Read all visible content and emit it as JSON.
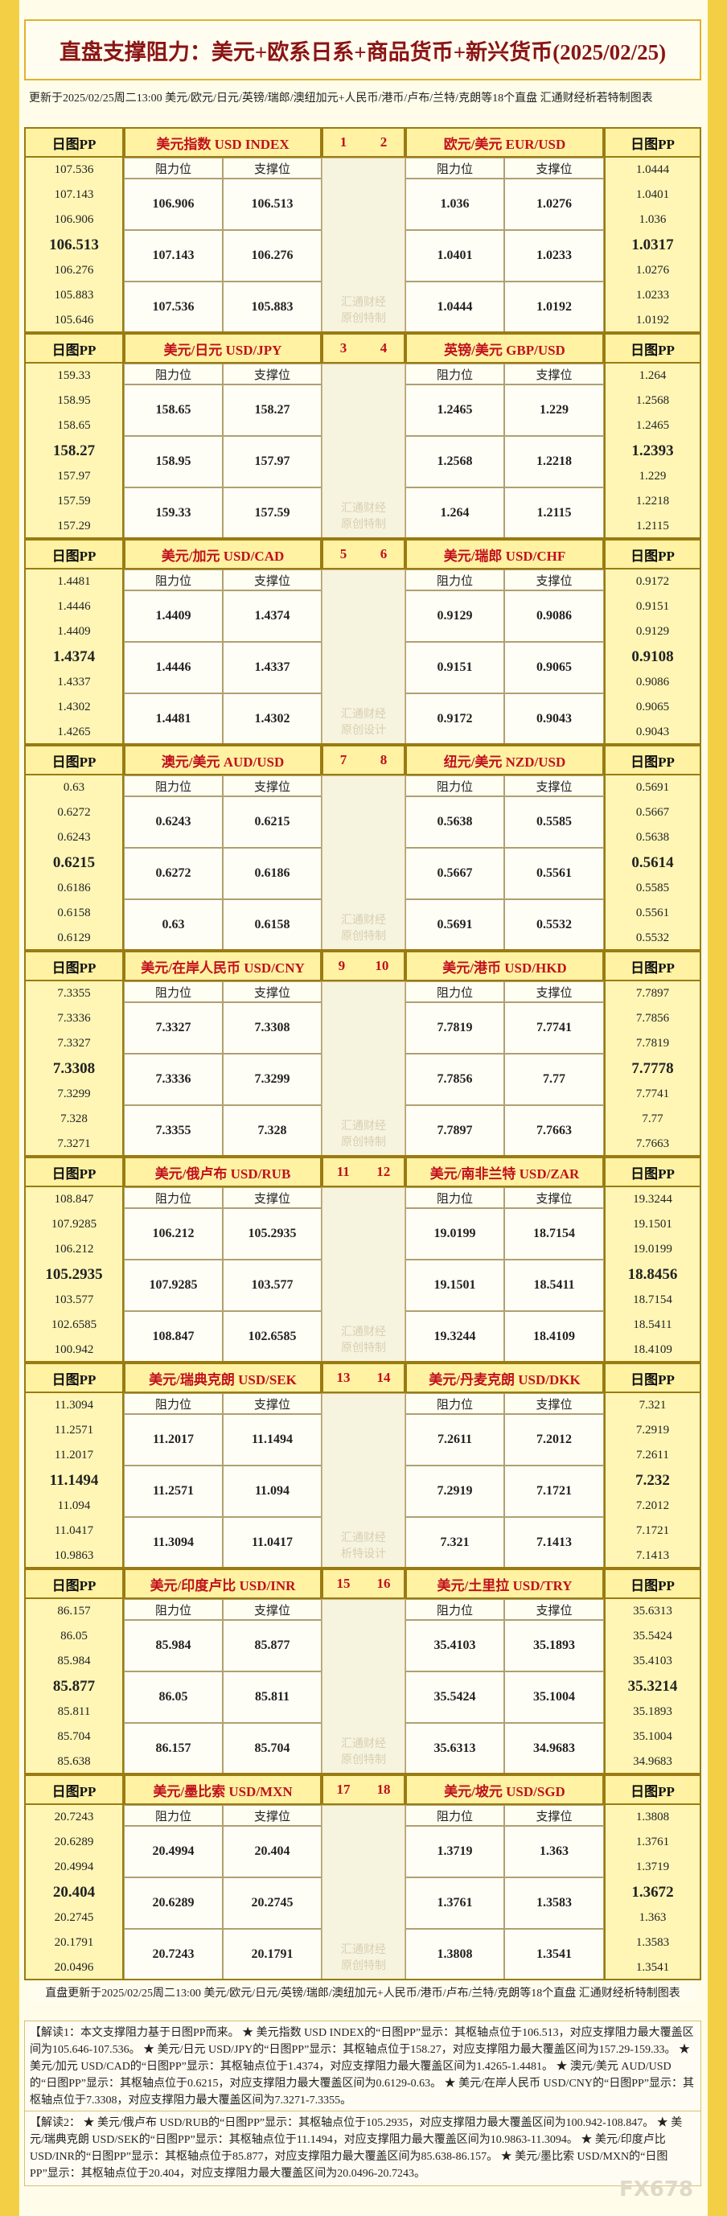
{
  "header": {
    "title": "直盘支撑阻力：美元+欧系日系+商品货币+新兴货币(2025/02/25)",
    "update": "更新于2025/02/25周二13:00 美元/欧元/日元/英镑/瑞郎/澳纽加元+人民币/港币/卢布/兰特/克朗等18个直盘 汇通财经析若特制图表"
  },
  "labels": {
    "pp": "日图PP",
    "res": "阻力位",
    "sup": "支撑位"
  },
  "blocks": [
    {
      "numbers": [
        "1",
        "2"
      ],
      "watermark": [
        "汇通财经",
        "原创特制"
      ],
      "pairs": [
        {
          "name": "美元指数 USD INDEX",
          "pp": [
            "107.536",
            "107.143",
            "106.906",
            "106.513",
            "106.276",
            "105.883",
            "105.646"
          ],
          "rows": [
            [
              "106.906",
              "106.513"
            ],
            [
              "107.143",
              "106.276"
            ],
            [
              "107.536",
              "105.883"
            ]
          ]
        },
        {
          "name": "欧元/美元 EUR/USD",
          "pp": [
            "1.0444",
            "1.0401",
            "1.036",
            "1.0317",
            "1.0276",
            "1.0233",
            "1.0192"
          ],
          "rows": [
            [
              "1.036",
              "1.0276"
            ],
            [
              "1.0401",
              "1.0233"
            ],
            [
              "1.0444",
              "1.0192"
            ]
          ]
        }
      ]
    },
    {
      "numbers": [
        "3",
        "4"
      ],
      "watermark": [
        "汇通财经",
        "原创特制"
      ],
      "pairs": [
        {
          "name": "美元/日元 USD/JPY",
          "pp": [
            "159.33",
            "158.95",
            "158.65",
            "158.27",
            "157.97",
            "157.59",
            "157.29"
          ],
          "rows": [
            [
              "158.65",
              "158.27"
            ],
            [
              "158.95",
              "157.97"
            ],
            [
              "159.33",
              "157.59"
            ]
          ]
        },
        {
          "name": "英镑/美元 GBP/USD",
          "pp": [
            "1.264",
            "1.2568",
            "1.2465",
            "1.2393",
            "1.229",
            "1.2218",
            "1.2115"
          ],
          "rows": [
            [
              "1.2465",
              "1.229"
            ],
            [
              "1.2568",
              "1.2218"
            ],
            [
              "1.264",
              "1.2115"
            ]
          ]
        }
      ]
    },
    {
      "numbers": [
        "5",
        "6"
      ],
      "watermark": [
        "汇通财经",
        "原创设计"
      ],
      "pairs": [
        {
          "name": "美元/加元 USD/CAD",
          "pp": [
            "1.4481",
            "1.4446",
            "1.4409",
            "1.4374",
            "1.4337",
            "1.4302",
            "1.4265"
          ],
          "rows": [
            [
              "1.4409",
              "1.4374"
            ],
            [
              "1.4446",
              "1.4337"
            ],
            [
              "1.4481",
              "1.4302"
            ]
          ]
        },
        {
          "name": "美元/瑞郎 USD/CHF",
          "pp": [
            "0.9172",
            "0.9151",
            "0.9129",
            "0.9108",
            "0.9086",
            "0.9065",
            "0.9043"
          ],
          "rows": [
            [
              "0.9129",
              "0.9086"
            ],
            [
              "0.9151",
              "0.9065"
            ],
            [
              "0.9172",
              "0.9043"
            ]
          ]
        }
      ]
    },
    {
      "numbers": [
        "7",
        "8"
      ],
      "watermark": [
        "汇通财经",
        "原创特制"
      ],
      "pairs": [
        {
          "name": "澳元/美元 AUD/USD",
          "pp": [
            "0.63",
            "0.6272",
            "0.6243",
            "0.6215",
            "0.6186",
            "0.6158",
            "0.6129"
          ],
          "rows": [
            [
              "0.6243",
              "0.6215"
            ],
            [
              "0.6272",
              "0.6186"
            ],
            [
              "0.63",
              "0.6158"
            ]
          ]
        },
        {
          "name": "纽元/美元 NZD/USD",
          "pp": [
            "0.5691",
            "0.5667",
            "0.5638",
            "0.5614",
            "0.5585",
            "0.5561",
            "0.5532"
          ],
          "rows": [
            [
              "0.5638",
              "0.5585"
            ],
            [
              "0.5667",
              "0.5561"
            ],
            [
              "0.5691",
              "0.5532"
            ]
          ]
        }
      ]
    },
    {
      "numbers": [
        "9",
        "10"
      ],
      "watermark": [
        "汇通财经",
        "原创特制"
      ],
      "pairs": [
        {
          "name": "美元/在岸人民币 USD/CNY",
          "pp": [
            "7.3355",
            "7.3336",
            "7.3327",
            "7.3308",
            "7.3299",
            "7.328",
            "7.3271"
          ],
          "rows": [
            [
              "7.3327",
              "7.3308"
            ],
            [
              "7.3336",
              "7.3299"
            ],
            [
              "7.3355",
              "7.328"
            ]
          ]
        },
        {
          "name": "美元/港币 USD/HKD",
          "pp": [
            "7.7897",
            "7.7856",
            "7.7819",
            "7.7778",
            "7.7741",
            "7.77",
            "7.7663"
          ],
          "rows": [
            [
              "7.7819",
              "7.7741"
            ],
            [
              "7.7856",
              "7.77"
            ],
            [
              "7.7897",
              "7.7663"
            ]
          ]
        }
      ]
    },
    {
      "numbers": [
        "11",
        "12"
      ],
      "watermark": [
        "汇通财经",
        "原创特制"
      ],
      "pairs": [
        {
          "name": "美元/俄卢布 USD/RUB",
          "pp": [
            "108.847",
            "107.9285",
            "106.212",
            "105.2935",
            "103.577",
            "102.6585",
            "100.942"
          ],
          "rows": [
            [
              "106.212",
              "105.2935"
            ],
            [
              "107.9285",
              "103.577"
            ],
            [
              "108.847",
              "102.6585"
            ]
          ]
        },
        {
          "name": "美元/南非兰特 USD/ZAR",
          "pp": [
            "19.3244",
            "19.1501",
            "19.0199",
            "18.8456",
            "18.7154",
            "18.5411",
            "18.4109"
          ],
          "rows": [
            [
              "19.0199",
              "18.7154"
            ],
            [
              "19.1501",
              "18.5411"
            ],
            [
              "19.3244",
              "18.4109"
            ]
          ]
        }
      ]
    },
    {
      "numbers": [
        "13",
        "14"
      ],
      "watermark": [
        "汇通财经",
        "析特设计"
      ],
      "pairs": [
        {
          "name": "美元/瑞典克朗 USD/SEK",
          "pp": [
            "11.3094",
            "11.2571",
            "11.2017",
            "11.1494",
            "11.094",
            "11.0417",
            "10.9863"
          ],
          "rows": [
            [
              "11.2017",
              "11.1494"
            ],
            [
              "11.2571",
              "11.094"
            ],
            [
              "11.3094",
              "11.0417"
            ]
          ]
        },
        {
          "name": "美元/丹麦克朗 USD/DKK",
          "pp": [
            "7.321",
            "7.2919",
            "7.2611",
            "7.232",
            "7.2012",
            "7.1721",
            "7.1413"
          ],
          "rows": [
            [
              "7.2611",
              "7.2012"
            ],
            [
              "7.2919",
              "7.1721"
            ],
            [
              "7.321",
              "7.1413"
            ]
          ]
        }
      ]
    },
    {
      "numbers": [
        "15",
        "16"
      ],
      "watermark": [
        "汇通财经",
        "原创特制"
      ],
      "pairs": [
        {
          "name": "美元/印度卢比 USD/INR",
          "pp": [
            "86.157",
            "86.05",
            "85.984",
            "85.877",
            "85.811",
            "85.704",
            "85.638"
          ],
          "rows": [
            [
              "85.984",
              "85.877"
            ],
            [
              "86.05",
              "85.811"
            ],
            [
              "86.157",
              "85.704"
            ]
          ]
        },
        {
          "name": "美元/土里拉 USD/TRY",
          "pp": [
            "35.6313",
            "35.5424",
            "35.4103",
            "35.3214",
            "35.1893",
            "35.1004",
            "34.9683"
          ],
          "rows": [
            [
              "35.4103",
              "35.1893"
            ],
            [
              "35.5424",
              "35.1004"
            ],
            [
              "35.6313",
              "34.9683"
            ]
          ]
        }
      ]
    },
    {
      "numbers": [
        "17",
        "18"
      ],
      "watermark": [
        "汇通财经",
        "原创特制"
      ],
      "pairs": [
        {
          "name": "美元/墨比索 USD/MXN",
          "pp": [
            "20.7243",
            "20.6289",
            "20.4994",
            "20.404",
            "20.2745",
            "20.1791",
            "20.0496"
          ],
          "rows": [
            [
              "20.4994",
              "20.404"
            ],
            [
              "20.6289",
              "20.2745"
            ],
            [
              "20.7243",
              "20.1791"
            ]
          ]
        },
        {
          "name": "美元/坡元 USD/SGD",
          "pp": [
            "1.3808",
            "1.3761",
            "1.3719",
            "1.3672",
            "1.363",
            "1.3583",
            "1.3541"
          ],
          "rows": [
            [
              "1.3719",
              "1.363"
            ],
            [
              "1.3761",
              "1.3583"
            ],
            [
              "1.3808",
              "1.3541"
            ]
          ]
        }
      ]
    }
  ],
  "footer": {
    "update": "直盘更新于2025/02/25周二13:00 美元/欧元/日元/英镑/瑞郎/澳纽加元+人民币/港币/卢布/兰特/克朗等18个直盘 汇通财经析特制图表",
    "note1": "【解读1：本文支撑阻力基于日图PP而来。 ★ 美元指数 USD INDEX的“日图PP”显示：其枢轴点位于106.513，对应支撑阻力最大覆盖区间为105.646-107.536。 ★ 美元/日元 USD/JPY的“日图PP”显示：其枢轴点位于158.27，对应支撑阻力最大覆盖区间为157.29-159.33。 ★ 美元/加元 USD/CAD的“日图PP”显示：其枢轴点位于1.4374，对应支撑阻力最大覆盖区间为1.4265-1.4481。 ★ 澳元/美元 AUD/USD的“日图PP”显示：其枢轴点位于0.6215，对应支撑阻力最大覆盖区间为0.6129-0.63。 ★ 美元/在岸人民币 USD/CNY的“日图PP”显示：其枢轴点位于7.3308，对应支撑阻力最大覆盖区间为7.3271-7.3355。",
    "note2": "【解读2： ★ 美元/俄卢布 USD/RUB的“日图PP”显示：其枢轴点位于105.2935，对应支撑阻力最大覆盖区间为100.942-108.847。 ★ 美元/瑞典克朗 USD/SEK的“日图PP”显示：其枢轴点位于11.1494，对应支撑阻力最大覆盖区间为10.9863-11.3094。 ★ 美元/印度卢比 USD/INR的“日图PP”显示：其枢轴点位于85.877，对应支撑阻力最大覆盖区间为85.638-86.157。 ★ 美元/墨比索 USD/MXN的“日图PP”显示：其枢轴点位于20.404，对应支撑阻力最大覆盖区间为20.0496-20.7243。",
    "logo": "FX678"
  }
}
